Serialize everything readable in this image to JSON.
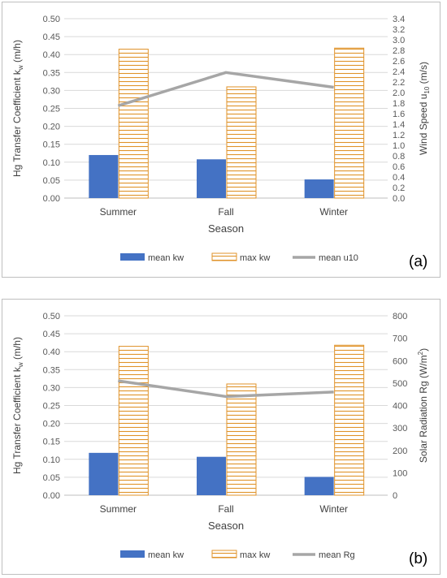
{
  "colors": {
    "mean_kw": "#4472c4",
    "max_kw_stroke": "#e0932a",
    "line": "#a6a6a6",
    "grid": "#d9d9d9",
    "tick_text": "#595959",
    "border": "#bfbfbf"
  },
  "chart_data": [
    {
      "type": "bar",
      "panel_label": "(a)",
      "categories": [
        "Summer",
        "Fall",
        "Winter"
      ],
      "xlabel": "Season",
      "ylabel": "Hg Transfer Coefficient k",
      "ylabel_sub": "w",
      "ylabel_unit": " (m/h)",
      "ylim": [
        0,
        0.5
      ],
      "y_ticks": [
        "0.00",
        "0.05",
        "0.10",
        "0.15",
        "0.20",
        "0.25",
        "0.30",
        "0.35",
        "0.40",
        "0.45",
        "0.50"
      ],
      "y2label": "Wind Speed u",
      "y2label_sub": "10",
      "y2label_unit": " (m/s)",
      "y2lim": [
        0,
        3.4
      ],
      "y2_ticks": [
        "0.0",
        "0.2",
        "0.4",
        "0.6",
        "0.8",
        "1.0",
        "1.2",
        "1.4",
        "1.6",
        "1.8",
        "2.0",
        "2.2",
        "2.4",
        "2.6",
        "2.8",
        "3.0",
        "3.2",
        "3.4"
      ],
      "grid": true,
      "legend_position": "bottom",
      "series": [
        {
          "name": "mean kw",
          "kind": "bar",
          "pattern": "solid",
          "values": [
            0.12,
            0.108,
            0.052
          ]
        },
        {
          "name": "max kw",
          "kind": "bar",
          "pattern": "horizontal-lines",
          "values": [
            0.415,
            0.31,
            0.418
          ]
        },
        {
          "name": "mean u10",
          "kind": "line",
          "axis": "secondary",
          "values": [
            1.75,
            2.38,
            2.1
          ]
        }
      ]
    },
    {
      "type": "bar",
      "panel_label": "(b)",
      "categories": [
        "Summer",
        "Fall",
        "Winter"
      ],
      "xlabel": "Season",
      "ylabel": "Hg Transfer Coefficient k",
      "ylabel_sub": "w",
      "ylabel_unit": " (m/h)",
      "ylim": [
        0,
        0.5
      ],
      "y_ticks": [
        "0.00",
        "0.05",
        "0.10",
        "0.15",
        "0.20",
        "0.25",
        "0.30",
        "0.35",
        "0.40",
        "0.45",
        "0.50"
      ],
      "y2label": "Solar Radiation Rg (W/m",
      "y2label_sup": "2",
      "y2label_unit": ")",
      "y2lim": [
        0,
        800
      ],
      "y2_ticks": [
        "0",
        "100",
        "200",
        "300",
        "400",
        "500",
        "600",
        "700",
        "800"
      ],
      "grid": true,
      "legend_position": "bottom",
      "series": [
        {
          "name": "mean kw",
          "kind": "bar",
          "pattern": "solid",
          "values": [
            0.118,
            0.107,
            0.051
          ]
        },
        {
          "name": "max kw",
          "kind": "bar",
          "pattern": "horizontal-lines",
          "values": [
            0.415,
            0.31,
            0.418
          ]
        },
        {
          "name": "mean Rg",
          "kind": "line",
          "axis": "secondary",
          "values": [
            510,
            440,
            460
          ]
        }
      ]
    }
  ]
}
